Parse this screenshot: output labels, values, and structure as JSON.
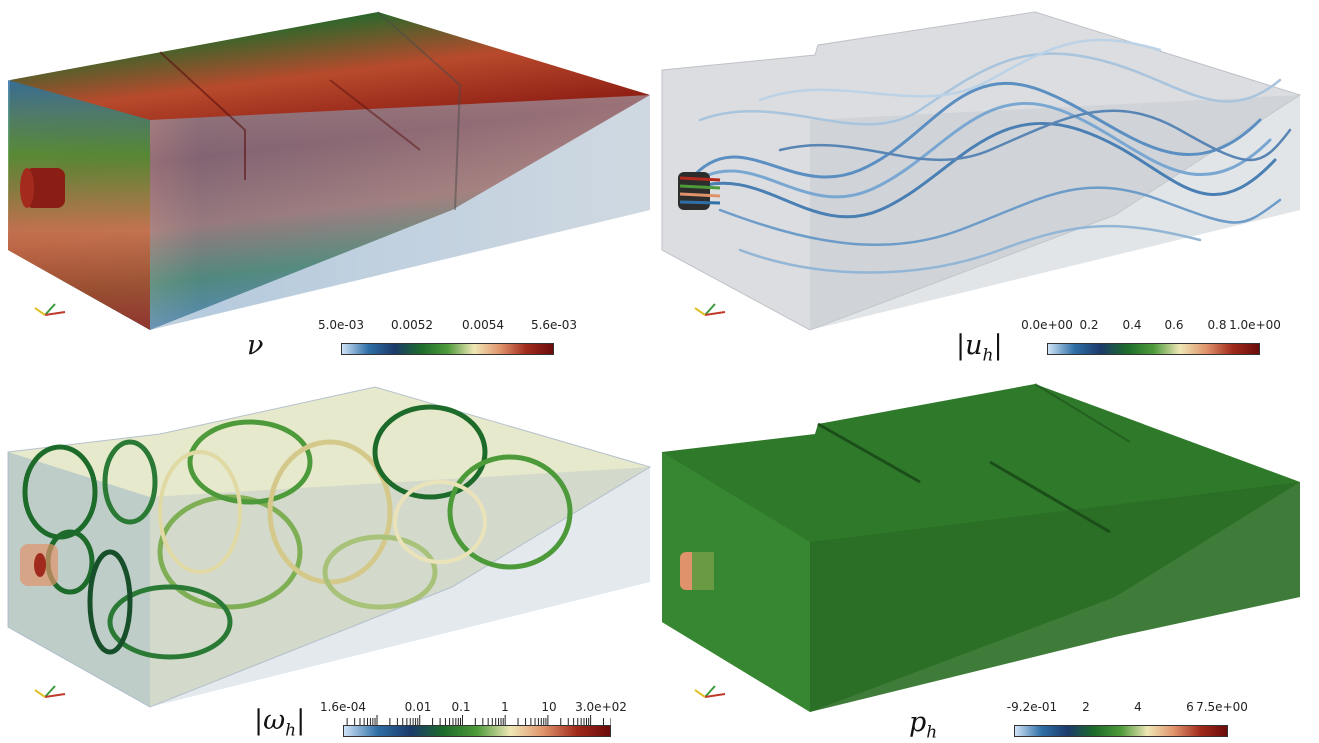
{
  "panels": [
    {
      "id": "viscosity",
      "field_label": "ν",
      "colorbar_ticks": [
        "5.0e-03",
        "0.0052",
        "0.0054",
        "5.6e-03"
      ],
      "colormap": [
        "#cfe3f7",
        "#2e6fa6",
        "#1b3a6a",
        "#1d6b2b",
        "#4d9a3a",
        "#efe7b6",
        "#e0936b",
        "#a02a1c",
        "#6b0b0b"
      ]
    },
    {
      "id": "velocity",
      "field_label_prefix": "|u",
      "field_label_sub": "h",
      "field_label_suffix": "|",
      "colorbar_ticks": [
        "0.0e+00",
        "0.2",
        "0.4",
        "0.6",
        "0.8",
        "1.0e+00"
      ],
      "colormap": [
        "#cfe3f7",
        "#2e6fa6",
        "#1b3a6a",
        "#1d6b2b",
        "#4d9a3a",
        "#efe7b6",
        "#e0936b",
        "#a02a1c",
        "#6b0b0b"
      ]
    },
    {
      "id": "vorticity",
      "field_label_prefix": "|ω",
      "field_label_sub": "h",
      "field_label_suffix": "|",
      "colorbar_ticks": [
        "1.6e-04",
        "0.01",
        "0.1",
        "1",
        "10",
        "3.0e+02"
      ],
      "colorbar_scale": "log",
      "colormap": [
        "#cfe3f7",
        "#2e6fa6",
        "#1b3a6a",
        "#1d6b2b",
        "#4d9a3a",
        "#efe7b6",
        "#e0936b",
        "#a02a1c",
        "#6b0b0b"
      ]
    },
    {
      "id": "pressure",
      "field_label_prefix": "p",
      "field_label_sub": "h",
      "field_label_suffix": "",
      "colorbar_ticks": [
        "-9.2e-01",
        "2",
        "4",
        "6",
        "7.5e+00"
      ],
      "colormap": [
        "#cfe3f7",
        "#2e6fa6",
        "#1b3a6a",
        "#1d6b2b",
        "#4d9a3a",
        "#efe7b6",
        "#e0936b",
        "#a02a1c",
        "#6b0b0b"
      ]
    }
  ]
}
